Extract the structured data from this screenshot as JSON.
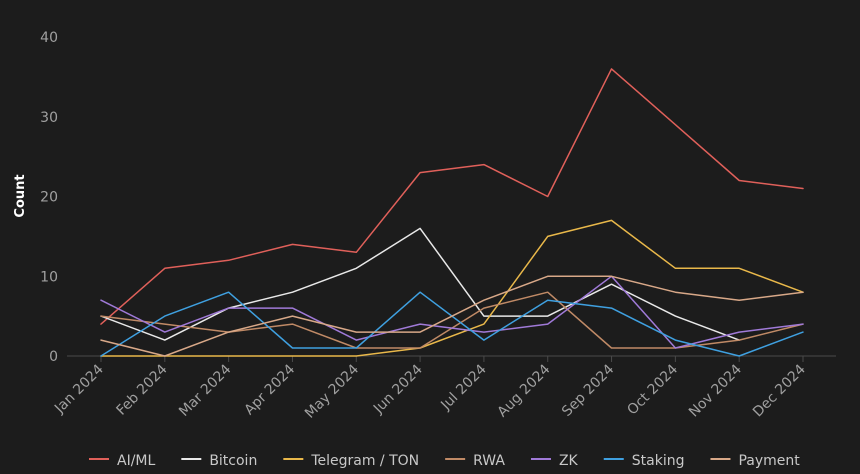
{
  "chart_data": {
    "type": "line",
    "xlabel": "",
    "ylabel": "Count",
    "ylim": [
      0,
      40
    ],
    "yticks": [
      0,
      10,
      20,
      30,
      40
    ],
    "grid": false,
    "legend_position": "bottom",
    "categories": [
      "Jan 2024",
      "Feb 2024",
      "Mar 2024",
      "Apr 2024",
      "May 2024",
      "Jun 2024",
      "Jul 2024",
      "Aug 2024",
      "Sep 2024",
      "Oct 2024",
      "Nov 2024",
      "Dec 2024"
    ],
    "series": [
      {
        "name": "AI/ML",
        "color": "#e0605a",
        "values": [
          4,
          11,
          12,
          14,
          13,
          23,
          24,
          20,
          36,
          29,
          22,
          21
        ]
      },
      {
        "name": "Bitcoin",
        "color": "#e8e8e8",
        "values": [
          5,
          2,
          6,
          8,
          11,
          16,
          5,
          5,
          9,
          5,
          2,
          null
        ]
      },
      {
        "name": "Telegram / TON",
        "color": "#e9b84a",
        "values": [
          0,
          0,
          0,
          0,
          0,
          1,
          4,
          15,
          17,
          11,
          11,
          8
        ]
      },
      {
        "name": "RWA",
        "color": "#c08a66",
        "values": [
          5,
          4,
          3,
          4,
          1,
          1,
          6,
          8,
          1,
          1,
          2,
          4
        ]
      },
      {
        "name": "ZK",
        "color": "#a07ad8",
        "values": [
          7,
          3,
          6,
          6,
          2,
          4,
          3,
          4,
          10,
          1,
          3,
          4
        ]
      },
      {
        "name": "Staking",
        "color": "#3fa0e0",
        "values": [
          0,
          5,
          8,
          1,
          1,
          8,
          2,
          7,
          6,
          2,
          0,
          3
        ]
      },
      {
        "name": "Payment",
        "color": "#d8a888",
        "values": [
          2,
          0,
          3,
          5,
          3,
          3,
          7,
          10,
          10,
          8,
          7,
          8
        ]
      }
    ]
  }
}
